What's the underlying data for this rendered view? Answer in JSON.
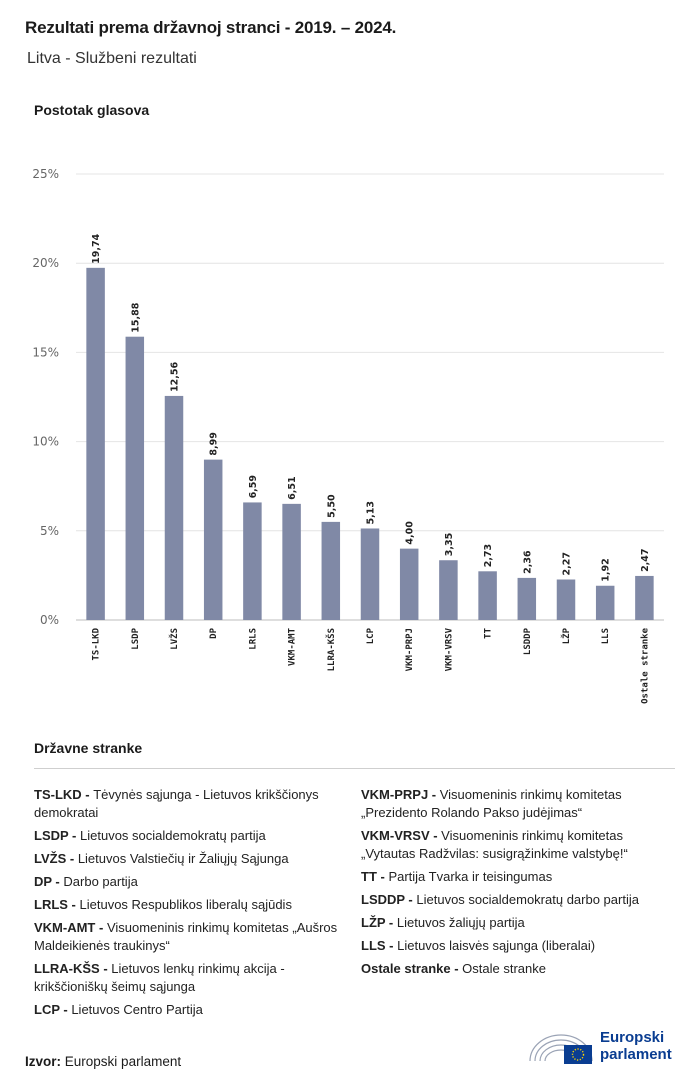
{
  "header": {
    "title": "Rezultati prema državnoj stranci - 2019. – 2024.",
    "subtitle": "Litva - Službeni rezultati"
  },
  "chart_data": {
    "type": "bar",
    "ylabel": "Postotak glasova",
    "ylim": [
      0,
      25
    ],
    "yticks": [
      0,
      5,
      10,
      15,
      20,
      25
    ],
    "ytick_labels": [
      "0%",
      "5%",
      "10%",
      "15%",
      "20%",
      "25%"
    ],
    "categories": [
      "TS-LKD",
      "LSDP",
      "LVŽS",
      "DP",
      "LRLS",
      "VKM-AMT",
      "LLRA-KŠS",
      "LCP",
      "VKM-PRPJ",
      "VKM-VRSV",
      "TT",
      "LSDDP",
      "LŽP",
      "LLS",
      "Ostale stranke"
    ],
    "values": [
      19.74,
      15.88,
      12.56,
      8.99,
      6.59,
      6.51,
      5.5,
      5.13,
      4.0,
      3.35,
      2.73,
      2.36,
      2.27,
      1.92,
      2.47
    ],
    "value_labels": [
      "19,74",
      "15,88",
      "12,56",
      "8,99",
      "6,59",
      "6,51",
      "5,50",
      "5,13",
      "4,00",
      "3,35",
      "2,73",
      "2,36",
      "2,27",
      "1,92",
      "2,47"
    ],
    "grid": true,
    "bar_color": "#8089a6"
  },
  "legend": {
    "title": "Državne stranke",
    "left": [
      {
        "abbr": "TS-LKD -",
        "name": "Tėvynės sąjunga - Lietuvos krikščionys demokratai"
      },
      {
        "abbr": "LSDP -",
        "name": "Lietuvos socialdemokratų partija"
      },
      {
        "abbr": "LVŽS -",
        "name": "Lietuvos Valstiečių ir Žaliųjų Sąjunga"
      },
      {
        "abbr": "DP -",
        "name": "Darbo partija"
      },
      {
        "abbr": "LRLS -",
        "name": "Lietuvos Respublikos liberalų sąjūdis"
      },
      {
        "abbr": "VKM-AMT -",
        "name": "Visuomeninis rinkimų komitetas „Aušros Maldeikienės traukinys“"
      },
      {
        "abbr": "LLRA-KŠS -",
        "name": "Lietuvos lenkų rinkimų akcija - krikščioniškų šeimų sąjunga"
      },
      {
        "abbr": "LCP -",
        "name": "Lietuvos Centro Partija"
      }
    ],
    "right": [
      {
        "abbr": "VKM-PRPJ -",
        "name": "Visuomeninis rinkimų komitetas „Prezidento Rolando Pakso judėjimas“"
      },
      {
        "abbr": "VKM-VRSV -",
        "name": "Visuomeninis rinkimų komitetas „Vytautas Radžvilas: susigrąžinkime valstybę!“"
      },
      {
        "abbr": "TT -",
        "name": "Partija Tvarka ir teisingumas"
      },
      {
        "abbr": "LSDDP -",
        "name": "Lietuvos socialdemokratų darbo partija"
      },
      {
        "abbr": "LŽP -",
        "name": "Lietuvos žaliųjų partija"
      },
      {
        "abbr": "LLS -",
        "name": "Lietuvos laisvės sąjunga (liberalai)"
      },
      {
        "abbr": "Ostale stranke -",
        "name": "Ostale stranke"
      }
    ]
  },
  "footer": {
    "source_label": "Izvor:",
    "source_value": "Europski parlament",
    "logo_line1": "Europski",
    "logo_line2": "parlament",
    "logo_color": "#0a3d91"
  }
}
